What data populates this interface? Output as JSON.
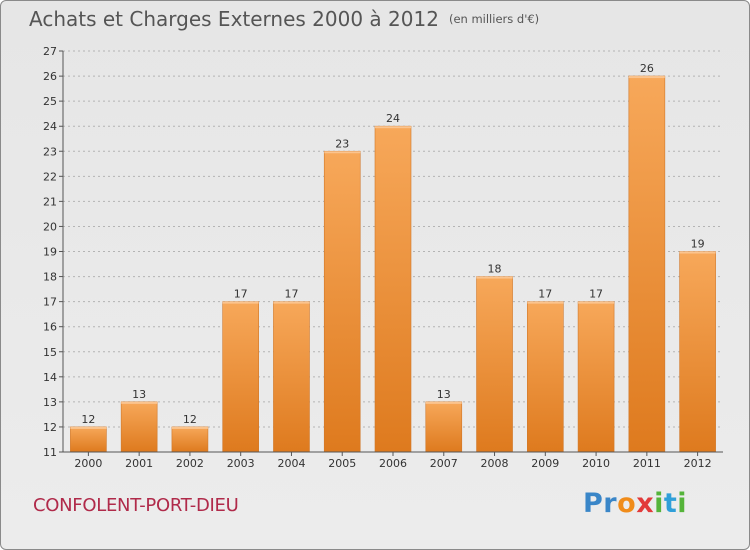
{
  "header": {
    "title": "Achats et Charges Externes 2000 à 2012",
    "subtitle": "(en milliers d'€)"
  },
  "commune": "CONFOLENT-PORT-DIEU",
  "logo": {
    "text": "Proxiti"
  },
  "colors": {
    "bar_light": "#f7a85a",
    "bar_dark": "#e17f22",
    "grid": "#b4b4b4",
    "axis_text": "#333333",
    "commune_text": "#b02a4a"
  },
  "chart_data": {
    "type": "bar",
    "categories": [
      "2000",
      "2001",
      "2002",
      "2003",
      "2004",
      "2005",
      "2006",
      "2007",
      "2008",
      "2009",
      "2010",
      "2011",
      "2012"
    ],
    "values": [
      12,
      13,
      12,
      17,
      17,
      23,
      24,
      13,
      18,
      17,
      17,
      26,
      19
    ],
    "data_labels": [
      "12",
      "13",
      "12",
      "17",
      "17",
      "23",
      "24",
      "13",
      "18",
      "17",
      "17",
      "26",
      "19"
    ],
    "title": "Achats et Charges Externes 2000 à 2012",
    "subtitle": "(en milliers d'€)",
    "xlabel": "",
    "ylabel": "",
    "ylim": [
      11,
      27
    ],
    "yticks": [
      11,
      12,
      13,
      14,
      15,
      16,
      17,
      18,
      19,
      20,
      21,
      22,
      23,
      24,
      25,
      26,
      27
    ],
    "grid": "horizontal dashed",
    "legend": "none"
  }
}
